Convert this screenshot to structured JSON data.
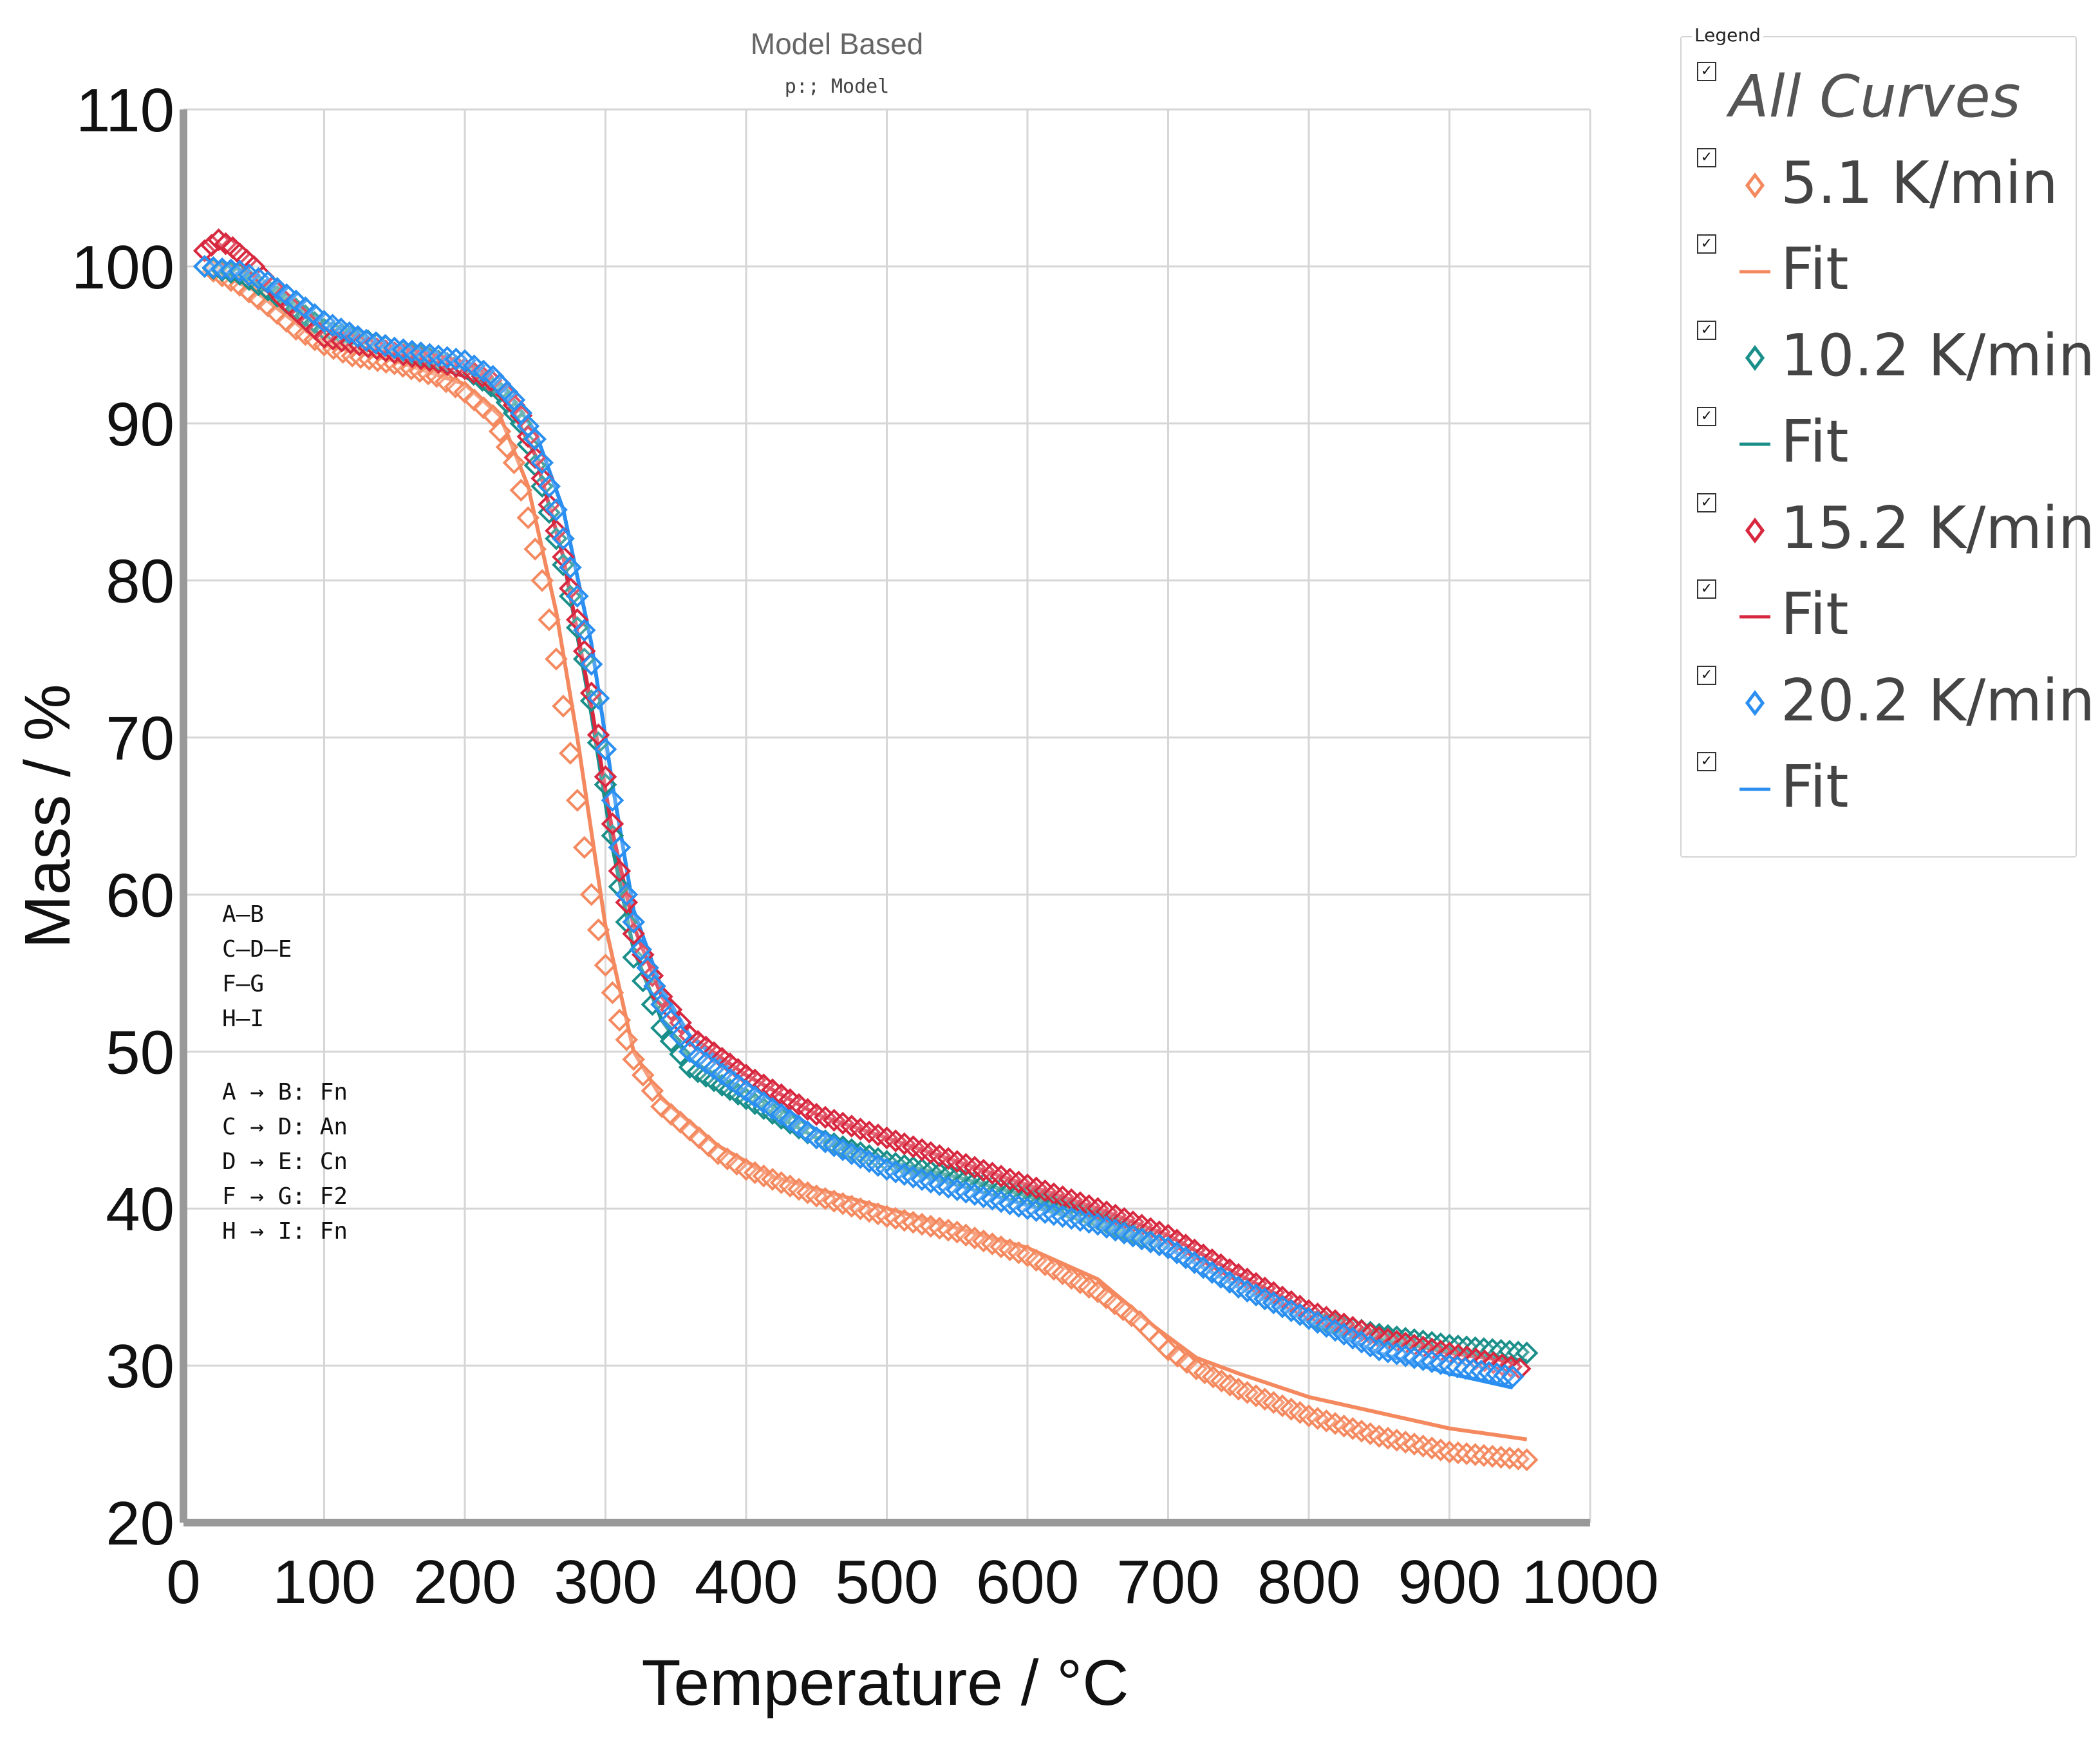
{
  "chart_data": {
    "type": "line",
    "title": "Model Based",
    "subtitle": "p:; Model",
    "xlabel": "Temperature / °C",
    "ylabel": "Mass / %",
    "xlim": [
      0,
      1000
    ],
    "ylim": [
      20,
      110
    ],
    "xticks": [
      0,
      100,
      200,
      300,
      400,
      500,
      600,
      700,
      800,
      900,
      1000
    ],
    "yticks": [
      20,
      30,
      40,
      50,
      60,
      70,
      80,
      90,
      100,
      110
    ],
    "grid": true,
    "legend_position": "right",
    "series": [
      {
        "name": "5.1 K/min",
        "kind": "marker",
        "color": "#f4895f",
        "x": [
          15,
          40,
          60,
          80,
          100,
          120,
          150,
          180,
          200,
          220,
          235,
          245,
          255,
          265,
          275,
          285,
          290,
          300,
          310,
          320,
          340,
          360,
          380,
          400,
          450,
          500,
          550,
          600,
          650,
          680,
          700,
          720,
          750,
          800,
          850,
          900,
          955
        ],
        "y": [
          100,
          98.8,
          97.5,
          96,
          95,
          94.3,
          93.8,
          93,
          92,
          90.5,
          87.5,
          84,
          80,
          75,
          69,
          63,
          60,
          55.5,
          52,
          49.5,
          46.5,
          45,
          43.5,
          42.5,
          40.8,
          39.5,
          38.5,
          37,
          34.7,
          32.8,
          31,
          29.8,
          28.5,
          26.8,
          25.5,
          24.5,
          24
        ]
      },
      {
        "name": "Fit",
        "kind": "line",
        "color": "#f4895f",
        "x": [
          15,
          50,
          100,
          150,
          200,
          225,
          245,
          265,
          280,
          290,
          300,
          320,
          340,
          380,
          420,
          500,
          600,
          650,
          690,
          720,
          750,
          800,
          850,
          900,
          955
        ],
        "y": [
          100,
          98.5,
          95,
          94,
          92.5,
          90.5,
          86,
          78,
          70,
          64,
          58,
          50,
          47,
          44,
          42,
          40,
          37.5,
          35.5,
          32.5,
          30.5,
          29.5,
          28,
          27,
          26,
          25.3
        ]
      },
      {
        "name": "10.2 K/min",
        "kind": "marker",
        "color": "#1a8f8a",
        "x": [
          15,
          40,
          60,
          80,
          100,
          150,
          200,
          225,
          240,
          255,
          270,
          285,
          300,
          310,
          320,
          340,
          360,
          400,
          450,
          500,
          550,
          600,
          650,
          700,
          750,
          800,
          850,
          900,
          955
        ],
        "y": [
          100,
          99.5,
          98.5,
          97.3,
          96,
          94.8,
          93.5,
          92,
          90,
          86,
          81,
          75,
          67,
          60.5,
          56,
          51.5,
          49,
          47,
          44.5,
          43,
          42,
          40.8,
          39.3,
          37.5,
          35,
          33,
          32,
          31.3,
          30.8
        ]
      },
      {
        "name": "Fit",
        "kind": "line",
        "color": "#1a8f8a",
        "x": [
          15,
          50,
          100,
          150,
          200,
          230,
          250,
          270,
          290,
          305,
          320,
          340,
          360,
          400,
          450,
          500,
          550,
          600,
          650,
          700,
          750,
          800,
          850,
          900,
          955
        ],
        "y": [
          100,
          99,
          96,
          94.8,
          93.5,
          91.5,
          88,
          81.5,
          71.5,
          63,
          56.5,
          52,
          49.5,
          47,
          44.5,
          43,
          42,
          40.8,
          39.3,
          37.5,
          35,
          33,
          32,
          31,
          30.3
        ]
      },
      {
        "name": "15.2 K/min",
        "kind": "marker",
        "color": "#d7283f",
        "x": [
          15,
          25,
          35,
          50,
          70,
          100,
          150,
          200,
          225,
          240,
          255,
          270,
          285,
          300,
          310,
          320,
          340,
          360,
          400,
          450,
          500,
          550,
          600,
          650,
          700,
          750,
          800,
          850,
          900,
          950
        ],
        "y": [
          101,
          101.7,
          101.2,
          100,
          98,
          95.5,
          94.5,
          93.5,
          92.5,
          90.5,
          86.5,
          81.5,
          75.5,
          67.5,
          61.5,
          57.5,
          53.5,
          51,
          48.5,
          46,
          44.5,
          43,
          41.5,
          40,
          38.3,
          35.8,
          33.5,
          31.8,
          30.8,
          29.8
        ]
      },
      {
        "name": "Fit",
        "kind": "line",
        "color": "#d7283f",
        "x": [
          15,
          50,
          100,
          150,
          200,
          230,
          250,
          270,
          290,
          305,
          320,
          340,
          360,
          400,
          450,
          500,
          550,
          600,
          650,
          700,
          750,
          800,
          850,
          900,
          950
        ],
        "y": [
          100.5,
          99.5,
          96,
          94.5,
          93,
          91.5,
          88,
          81.5,
          72,
          64,
          58,
          53.5,
          51,
          48.5,
          46,
          44.5,
          43,
          41.5,
          40,
          38.3,
          35.8,
          33.5,
          31.8,
          30.8,
          30.2
        ]
      },
      {
        "name": "20.2 K/min",
        "kind": "marker",
        "color": "#2a8ff0",
        "x": [
          15,
          40,
          60,
          80,
          100,
          130,
          150,
          200,
          220,
          235,
          250,
          265,
          280,
          295,
          305,
          315,
          325,
          340,
          360,
          400,
          450,
          500,
          550,
          600,
          650,
          700,
          750,
          800,
          850,
          900,
          945
        ],
        "y": [
          100,
          99.7,
          99,
          97.8,
          96.5,
          95.3,
          94.8,
          94,
          93,
          91.5,
          89,
          84.5,
          79,
          72.5,
          66,
          60,
          56.5,
          53,
          50,
          47.5,
          44.5,
          42.5,
          41.2,
          40,
          39,
          37.5,
          35,
          33,
          31,
          30,
          29.3
        ]
      },
      {
        "name": "Fit",
        "kind": "line",
        "color": "#2a8ff0",
        "x": [
          15,
          50,
          100,
          150,
          200,
          230,
          250,
          270,
          290,
          305,
          320,
          340,
          360,
          400,
          450,
          500,
          550,
          600,
          650,
          700,
          750,
          800,
          850,
          900,
          945
        ],
        "y": [
          100,
          99.3,
          96.5,
          94.8,
          93.8,
          92,
          89.5,
          84.5,
          76,
          67,
          59,
          54,
          51,
          48,
          45,
          43,
          41.5,
          40.2,
          39,
          37.5,
          35,
          32.8,
          30.8,
          29.5,
          28.6
        ]
      }
    ],
    "annotations": {
      "steps": [
        "A–B",
        "C–D–E",
        "F–G",
        "H–I"
      ],
      "models": [
        "A → B: Fn",
        "C → D: An",
        "D → E: Cn",
        "F → G: F2",
        "H → I: Fn"
      ]
    }
  },
  "legend": {
    "caption": "Legend",
    "check_mark": "✓",
    "items": [
      {
        "label": "All Curves",
        "kind": "all"
      },
      {
        "label": "5.1 K/min",
        "kind": "marker",
        "color": "#f4895f"
      },
      {
        "label": "Fit",
        "kind": "line",
        "color": "#f4895f"
      },
      {
        "label": "10.2 K/min",
        "kind": "marker",
        "color": "#1a8f8a"
      },
      {
        "label": "Fit",
        "kind": "line",
        "color": "#1a8f8a"
      },
      {
        "label": "15.2 K/min",
        "kind": "marker",
        "color": "#d7283f"
      },
      {
        "label": "Fit",
        "kind": "line",
        "color": "#d7283f"
      },
      {
        "label": "20.2 K/min",
        "kind": "marker",
        "color": "#2a8ff0"
      },
      {
        "label": "Fit",
        "kind": "line",
        "color": "#2a8ff0"
      }
    ]
  }
}
